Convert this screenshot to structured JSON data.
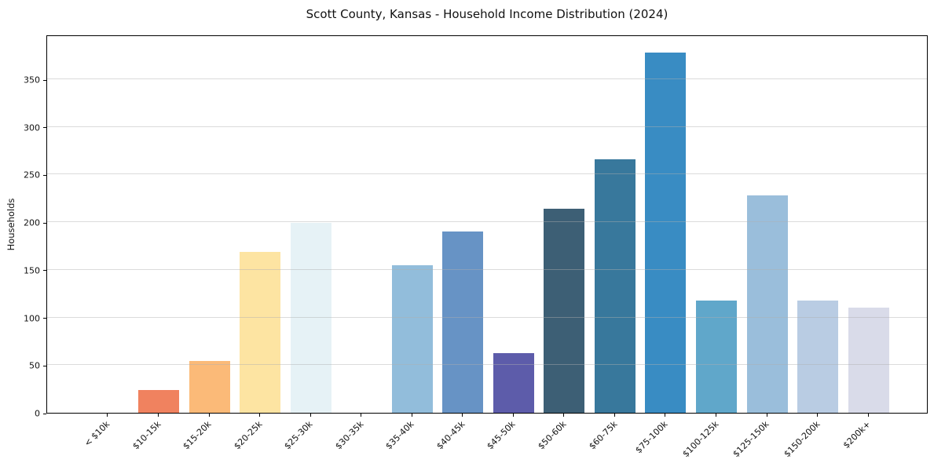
{
  "chart_data": {
    "type": "bar",
    "title": "Scott County, Kansas - Household Income Distribution (2024)",
    "xlabel": "",
    "ylabel": "Households",
    "categories": [
      "< $10k",
      "$10-15k",
      "$15-20k",
      "$20-25k",
      "$25-30k",
      "$30-35k",
      "$35-40k",
      "$40-45k",
      "$45-50k",
      "$50-60k",
      "$60-75k",
      "$75-100k",
      "$100-125k",
      "$125-150k",
      "$150-200k",
      "$200k+"
    ],
    "values": [
      0,
      24,
      54,
      169,
      199,
      0,
      155,
      190,
      63,
      214,
      266,
      378,
      118,
      228,
      118,
      110
    ],
    "bar_colors": [
      "#cccccc",
      "#f0825f",
      "#fbba78",
      "#fde4a2",
      "#e6f2f6",
      "#cccccc",
      "#92bddb",
      "#6793c5",
      "#5d5caa",
      "#3d5f75",
      "#38789c",
      "#398cc3",
      "#60a7ca",
      "#9abedb",
      "#b9cce3",
      "#d9dbe9"
    ],
    "ylim": [
      0,
      397
    ],
    "yticks": [
      0,
      50,
      100,
      150,
      200,
      250,
      300,
      350
    ],
    "grid": "horizontal-on-top",
    "legend": "none",
    "background_color": "#ffffff",
    "spine_color": "#000000",
    "text_color": "#111111"
  }
}
